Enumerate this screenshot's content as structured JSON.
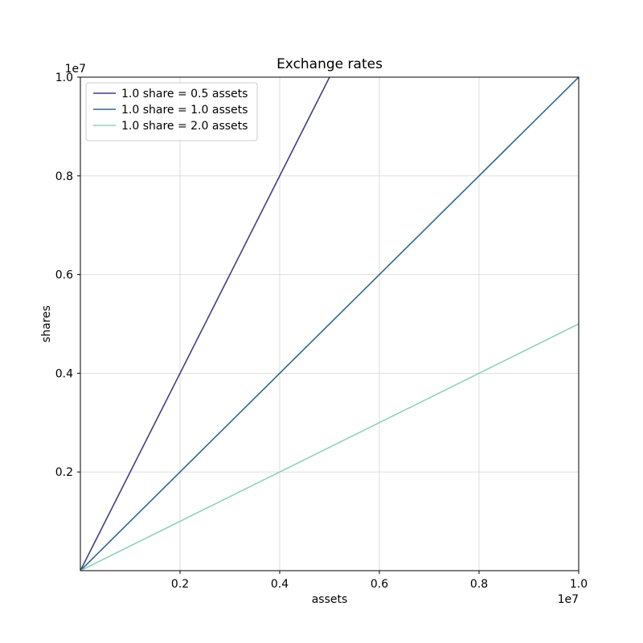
{
  "figure": {
    "background": "#ffffff"
  },
  "chart_data": {
    "type": "line",
    "title": "Exchange rates",
    "xlabel": "assets",
    "ylabel": "shares",
    "x_offset_text": "1e7",
    "y_offset_text": "1e7",
    "xlim": [
      0,
      10000000
    ],
    "ylim": [
      0,
      10000000
    ],
    "grid": true,
    "grid_color": "#d9d9d9",
    "spine_color": "#000000",
    "x_ticks": {
      "values": [
        2000000,
        4000000,
        6000000,
        8000000,
        10000000
      ],
      "labels": [
        "0.2",
        "0.4",
        "0.6",
        "0.8",
        "1.0"
      ]
    },
    "y_ticks": {
      "values": [
        2000000,
        4000000,
        6000000,
        8000000,
        10000000
      ],
      "labels": [
        "0.2",
        "0.4",
        "0.6",
        "0.8",
        "1.0"
      ]
    },
    "legend": {
      "position": "upper left",
      "border_color": "#cccccc",
      "background": "#ffffff"
    },
    "series": [
      {
        "name": "1.0 share = 0.5 assets",
        "color": "#433e85",
        "x": [
          0,
          5000000
        ],
        "y": [
          0,
          10000000
        ]
      },
      {
        "name": "1.0 share = 1.0 assets",
        "color": "#31688e",
        "x": [
          0,
          10000000
        ],
        "y": [
          0,
          10000000
        ]
      },
      {
        "name": "1.0 share = 2.0 assets",
        "color": "#8fd0b9",
        "x": [
          0,
          10000000
        ],
        "y": [
          0,
          5000000
        ]
      }
    ]
  }
}
